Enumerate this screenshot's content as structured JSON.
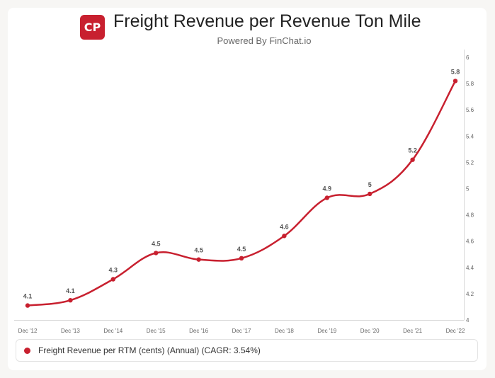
{
  "header": {
    "logo_text": "CP",
    "title": "Freight Revenue per Revenue Ton Mile",
    "subtitle": "Powered By FinChat.io"
  },
  "legend": {
    "label": "Freight Revenue per RTM (cents) (Annual) (CAGR: 3.54%)"
  },
  "colors": {
    "series": "#c8202f",
    "axis": "#d8d8d8",
    "tick_text": "#666666",
    "label_text": "#555555"
  },
  "chart_data": {
    "type": "line",
    "title": "Freight Revenue per Revenue Ton Mile",
    "xlabel": "",
    "ylabel": "",
    "categories": [
      "Dec '12",
      "Dec '13",
      "Dec '14",
      "Dec '15",
      "Dec '16",
      "Dec '17",
      "Dec '18",
      "Dec '19",
      "Dec '20",
      "Dec '21",
      "Dec '22"
    ],
    "series": [
      {
        "name": "Freight Revenue per RTM (cents) (Annual) (CAGR: 3.54%)",
        "values": [
          4.11,
          4.15,
          4.31,
          4.51,
          4.46,
          4.47,
          4.64,
          4.93,
          4.96,
          5.22,
          5.82
        ],
        "labels": [
          "4.1",
          "4.1",
          "4.3",
          "4.5",
          "4.5",
          "4.5",
          "4.6",
          "4.9",
          "5",
          "5.2",
          "5.8"
        ]
      }
    ],
    "ylim": [
      4,
      6
    ],
    "yticks": [
      "4",
      "4.2",
      "4.4",
      "4.6",
      "4.8",
      "5",
      "5.2",
      "5.4",
      "5.6",
      "5.8",
      "6"
    ],
    "y_axis_position": "right",
    "grid": false,
    "legend_position": "bottom"
  }
}
